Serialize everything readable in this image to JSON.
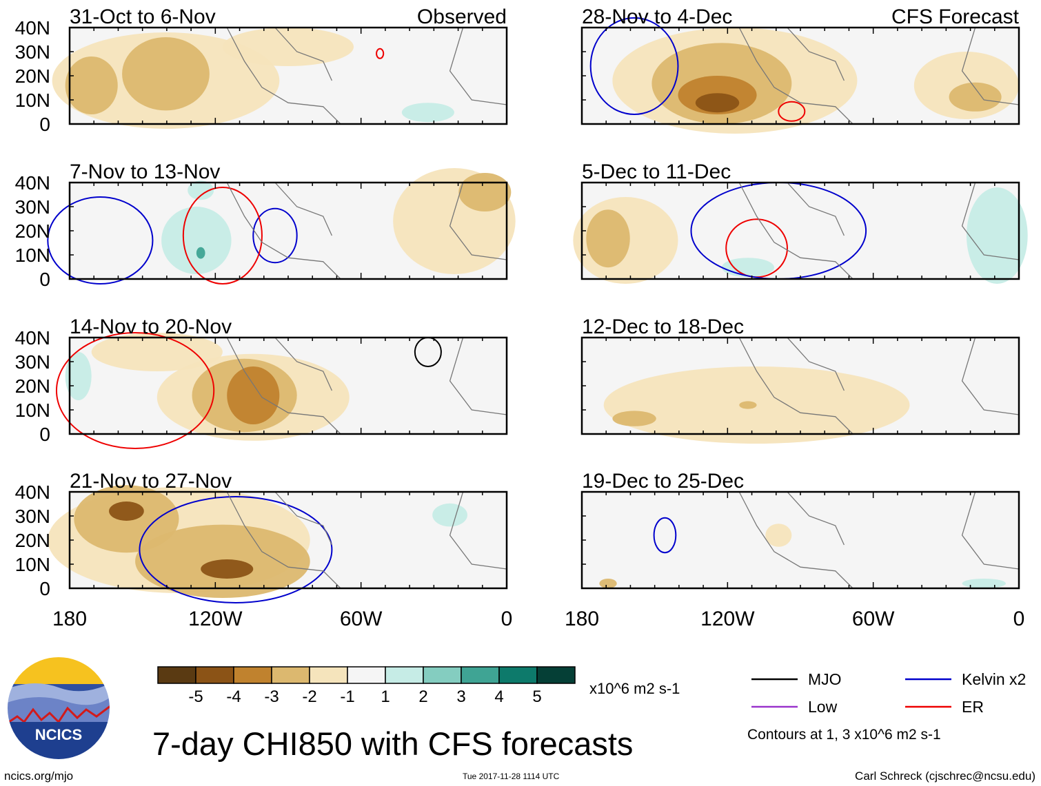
{
  "chart_data": {
    "type": "heatmap",
    "title": "7-day CHI850 with CFS forecasts",
    "units_label": "x10^6 m2 s-1",
    "observed_label": "Observed",
    "forecast_label": "CFS Forecast",
    "x_range_deg": [
      -180,
      0
    ],
    "y_range_deg": [
      0,
      40
    ],
    "x_ticks": [
      {
        "value": -180,
        "label": "180"
      },
      {
        "value": -120,
        "label": "120W"
      },
      {
        "value": -60,
        "label": "60W"
      },
      {
        "value": 0,
        "label": "0"
      }
    ],
    "y_ticks": [
      {
        "value": 40,
        "label": "40N"
      },
      {
        "value": 30,
        "label": "30N"
      },
      {
        "value": 20,
        "label": "20N"
      },
      {
        "value": 10,
        "label": "10N"
      },
      {
        "value": 0,
        "label": "0"
      }
    ],
    "panels": [
      {
        "id": "p1",
        "title": "31-Oct to 6-Nov",
        "kind": "observed"
      },
      {
        "id": "p2",
        "title": "7-Nov to 13-Nov",
        "kind": "observed"
      },
      {
        "id": "p3",
        "title": "14-Nov to 20-Nov",
        "kind": "observed"
      },
      {
        "id": "p4",
        "title": "21-Nov to 27-Nov",
        "kind": "observed"
      },
      {
        "id": "p5",
        "title": "28-Nov to 4-Dec",
        "kind": "forecast"
      },
      {
        "id": "p6",
        "title": "5-Dec to 11-Dec",
        "kind": "forecast"
      },
      {
        "id": "p7",
        "title": "12-Dec to 18-Dec",
        "kind": "forecast"
      },
      {
        "id": "p8",
        "title": "19-Dec to 25-Dec",
        "kind": "forecast"
      }
    ],
    "colorbar": {
      "colors": [
        "#5a3a12",
        "#8b5316",
        "#c0822e",
        "#dcb86f",
        "#f5e4bc",
        "#f5f5f5",
        "#c6ece6",
        "#84cdc0",
        "#3fa494",
        "#0d7a6b",
        "#053f36"
      ],
      "labels": [
        "-5",
        "-4",
        "-3",
        "-2",
        "-1",
        "1",
        "2",
        "3",
        "4",
        "5"
      ]
    },
    "legend": [
      {
        "name": "MJO",
        "color": "#000000"
      },
      {
        "name": "Kelvin x2",
        "color": "#0000cc"
      },
      {
        "name": "Low",
        "color": "#9933cc"
      },
      {
        "name": "ER",
        "color": "#ee0000"
      }
    ],
    "contour_note": "Contours at 1, 3 x10^6 m2 s-1"
  },
  "footer": {
    "logo_text": "NCICS",
    "website": "ncics.org/mjo",
    "timestamp": "Tue 2017-11-28 1114 UTC",
    "credit": "Carl Schreck (cjschrec@ncsu.edu)"
  }
}
